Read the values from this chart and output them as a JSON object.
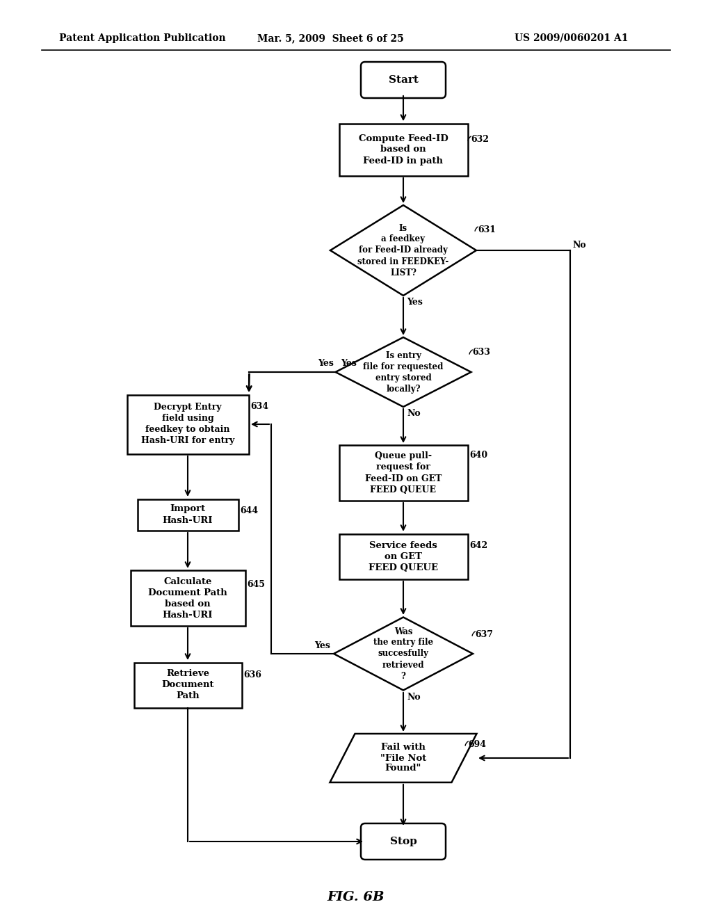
{
  "title_left": "Patent Application Publication",
  "title_mid": "Mar. 5, 2009  Sheet 6 of 25",
  "title_right": "US 2009/0060201 A1",
  "fig_label": "FIG. 6B",
  "bg_color": "#ffffff",
  "fig_width": 10.24,
  "fig_height": 13.2,
  "dpi": 100
}
